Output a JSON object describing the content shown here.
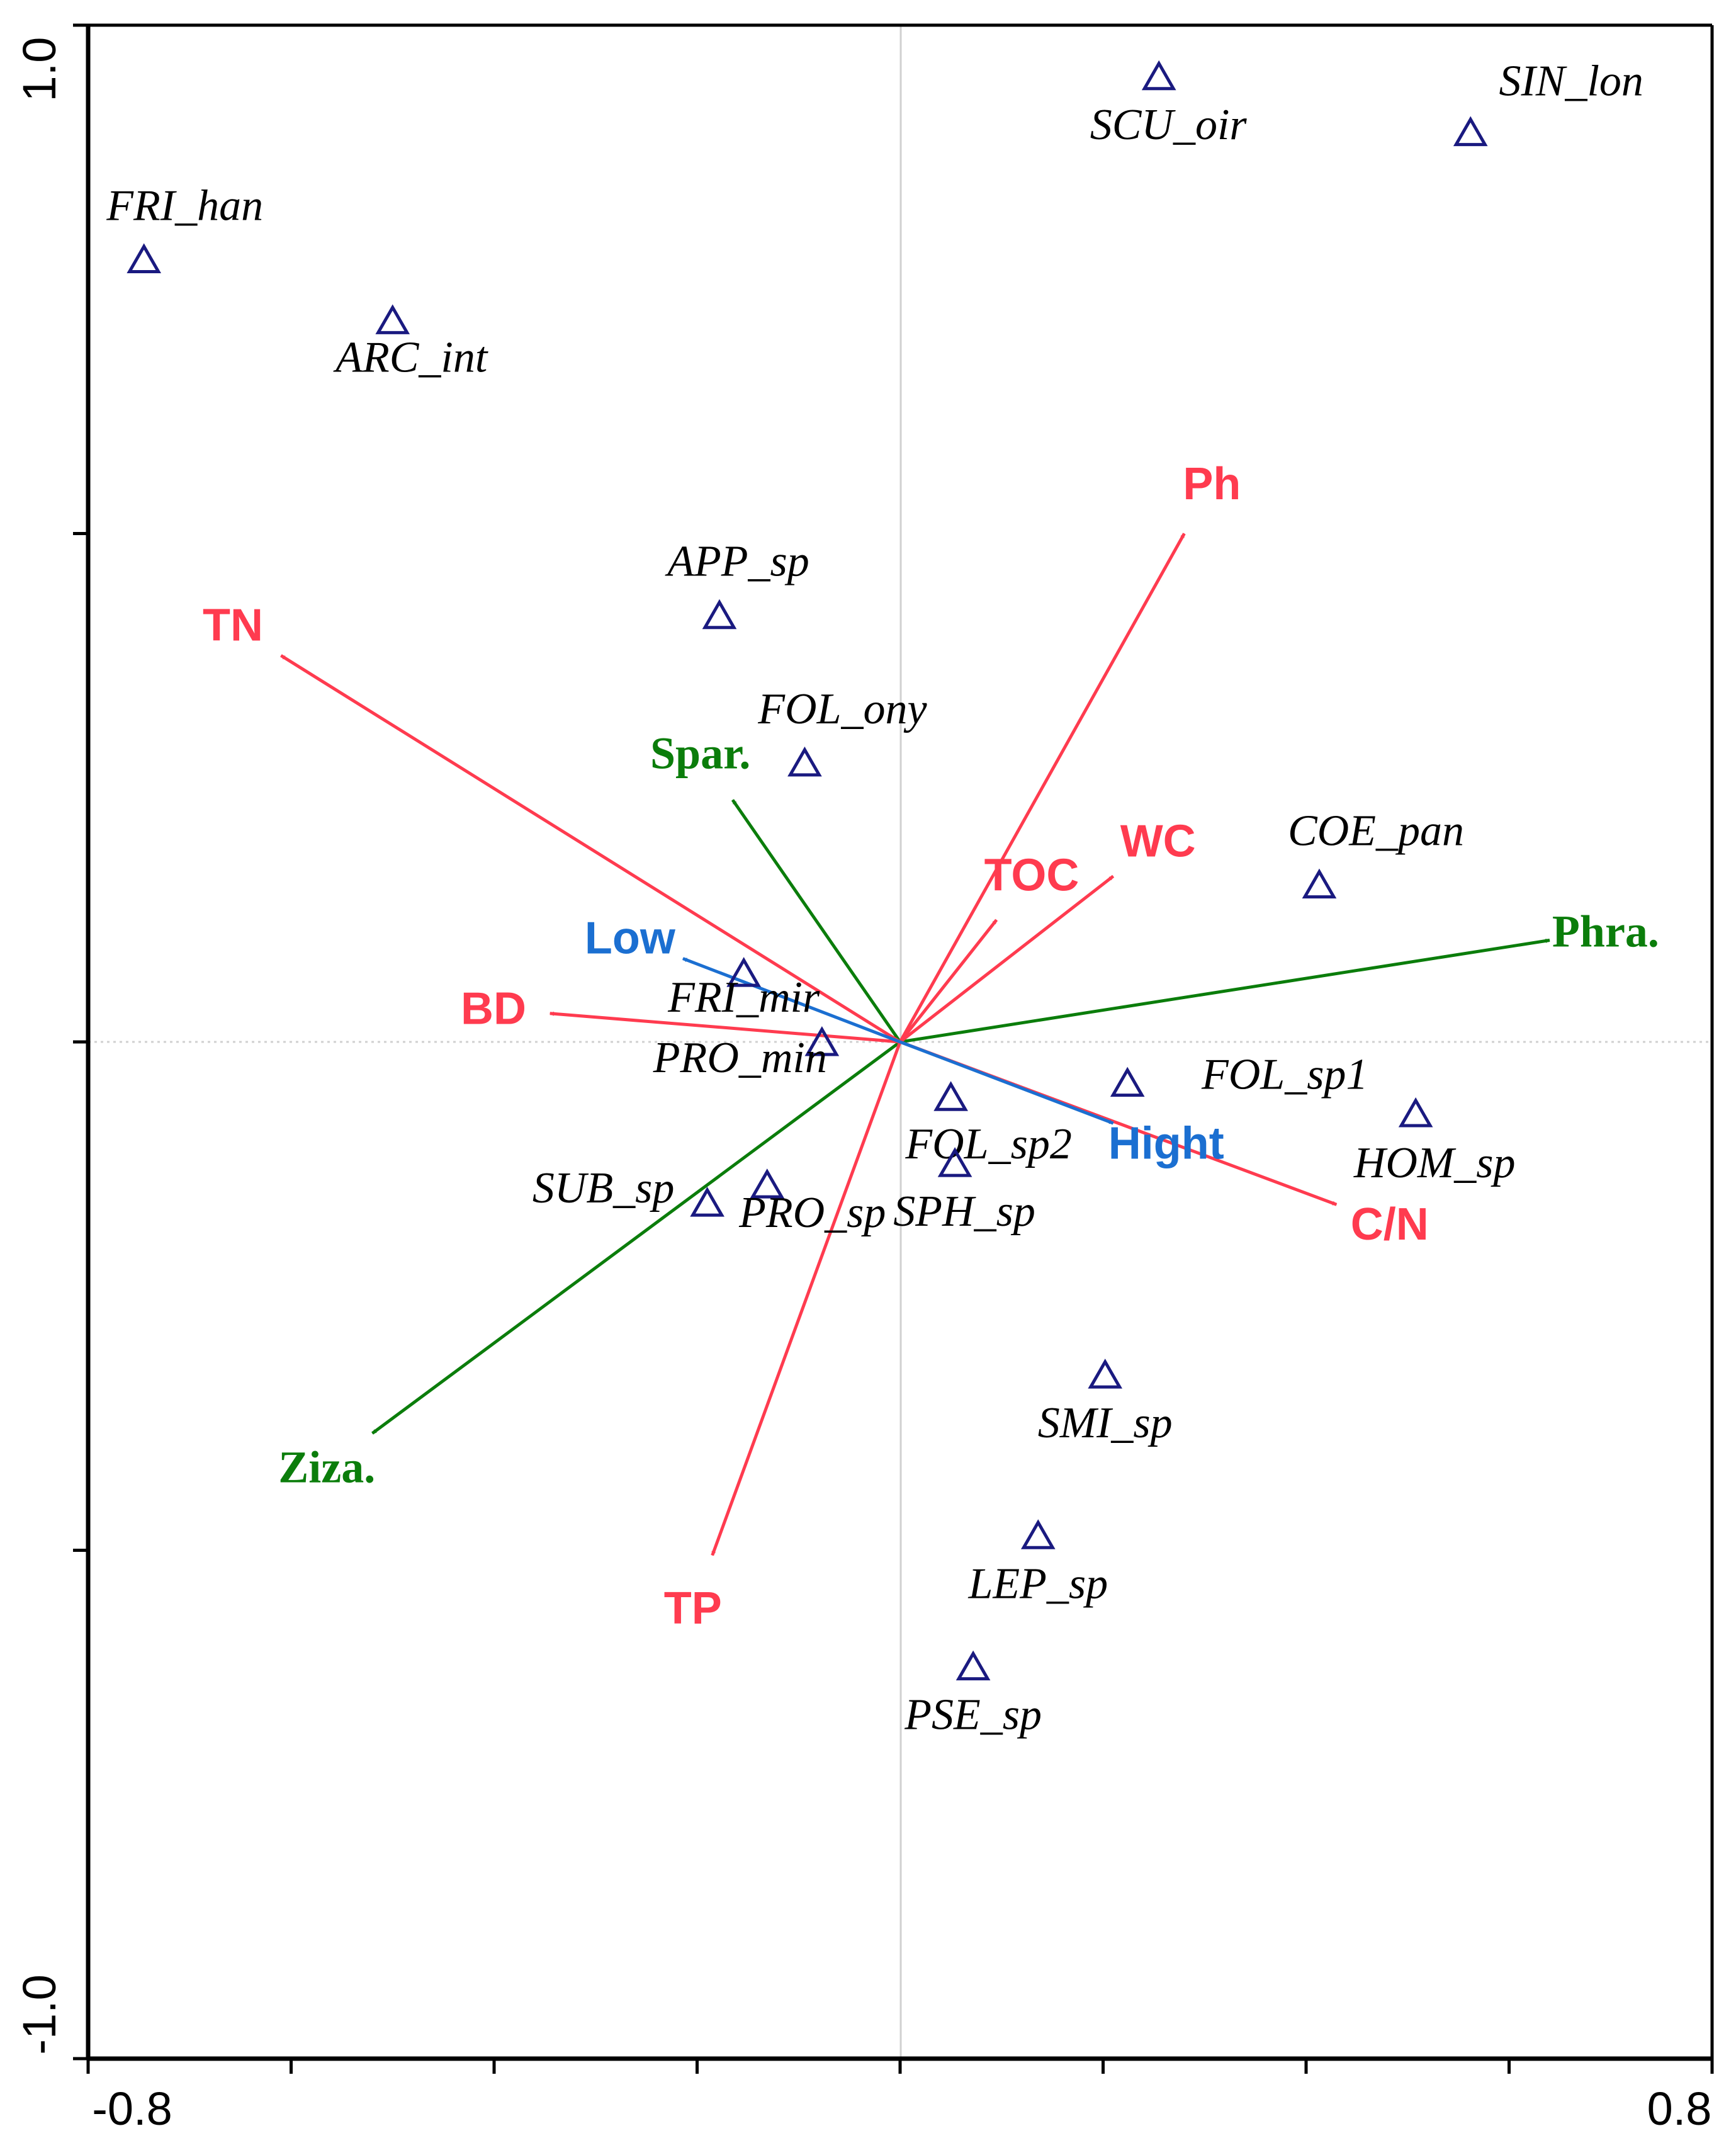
{
  "chart_data": {
    "type": "scatter",
    "subtype": "ordination biplot",
    "title": "",
    "xlabel": "",
    "ylabel": "",
    "xlim": [
      -0.8,
      0.8
    ],
    "ylim": [
      -1.0,
      1.0
    ],
    "x_tick_labels": [
      "-0.8",
      "0.8"
    ],
    "y_tick_labels": [
      "1.0",
      "-1.0"
    ],
    "gridlines": "zero lines only",
    "colors": {
      "species": "#1a1a80",
      "soil": "#ff3b4f",
      "vegetation": "#0b7d0b",
      "elevation": "#1b6fd1",
      "axis": "#000000",
      "zero_line": "#d0d0d0"
    },
    "species": [
      {
        "name": "SCU_oir",
        "x": 0.255,
        "y": 0.95
      },
      {
        "name": "FRI_han",
        "x": -0.745,
        "y": 0.77
      },
      {
        "name": "ARC_int",
        "x": -0.5,
        "y": 0.71
      },
      {
        "name": "SIN_lon",
        "x": 0.562,
        "y": 0.895
      },
      {
        "name": "APP_sp",
        "x": -0.178,
        "y": 0.42
      },
      {
        "name": "FOL_ony",
        "x": -0.094,
        "y": 0.275
      },
      {
        "name": "COE_pan",
        "x": 0.413,
        "y": 0.155
      },
      {
        "name": "FRI_mir",
        "x": -0.154,
        "y": 0.068
      },
      {
        "name": "PRO_min",
        "x": -0.077,
        "y": 0.0
      },
      {
        "name": "FOL_sp1",
        "x": 0.224,
        "y": -0.04
      },
      {
        "name": "HOM_sp",
        "x": 0.508,
        "y": -0.07
      },
      {
        "name": "FOL_sp2",
        "x": 0.05,
        "y": -0.054
      },
      {
        "name": "SPH_sp",
        "x": 0.054,
        "y": -0.119
      },
      {
        "name": "SUB_sp",
        "x": -0.19,
        "y": -0.158
      },
      {
        "name": "PRO_sp",
        "x": -0.131,
        "y": -0.14
      },
      {
        "name": "SMI_sp",
        "x": 0.202,
        "y": -0.327
      },
      {
        "name": "LEP_sp",
        "x": 0.136,
        "y": -0.485
      },
      {
        "name": "PSE_sp",
        "x": 0.072,
        "y": -0.614
      }
    ],
    "soil_vectors": [
      {
        "name": "Ph",
        "x": 0.28,
        "y": 0.5
      },
      {
        "name": "TN",
        "x": -0.61,
        "y": 0.38
      },
      {
        "name": "WC",
        "x": 0.21,
        "y": 0.163
      },
      {
        "name": "TOC",
        "x": 0.095,
        "y": 0.12
      },
      {
        "name": "BD",
        "x": -0.345,
        "y": 0.028
      },
      {
        "name": "C/N",
        "x": 0.43,
        "y": -0.16
      },
      {
        "name": "TP",
        "x": -0.185,
        "y": -0.505
      }
    ],
    "vegetation_vectors": [
      {
        "name": "Spar.",
        "x": -0.165,
        "y": 0.238
      },
      {
        "name": "Phra.",
        "x": 0.64,
        "y": 0.1
      },
      {
        "name": "Ziza.",
        "x": -0.52,
        "y": -0.385
      }
    ],
    "elevation_vectors": [
      {
        "name": "Low",
        "x": -0.214,
        "y": 0.082
      },
      {
        "name": "Hight",
        "x": 0.21,
        "y": -0.08
      }
    ]
  }
}
